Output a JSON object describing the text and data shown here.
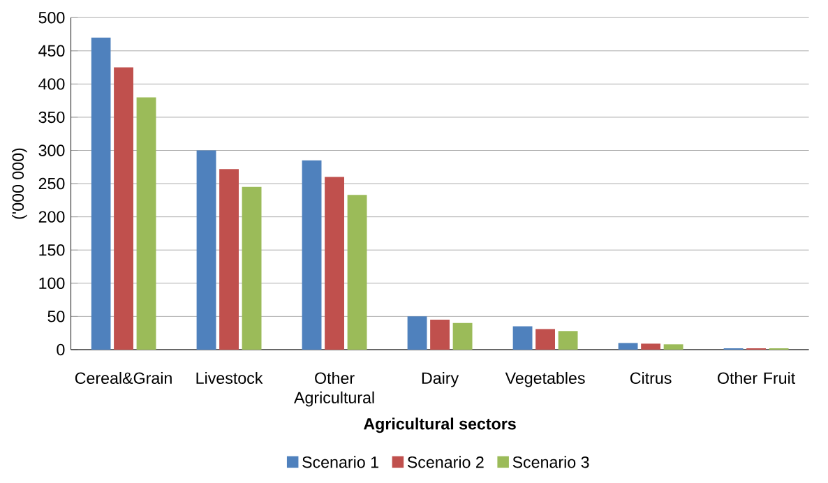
{
  "chart_data": {
    "type": "bar",
    "xlabel": "Agricultural sectors",
    "ylabel": "('000 000)",
    "categories": [
      "Cereal&Grain",
      "Livestock",
      "Other Agricultural",
      "Dairy",
      "Vegetables",
      "Citrus",
      "Other Fruit"
    ],
    "series": [
      {
        "name": "Scenario 1",
        "color": "#4f81bd",
        "values": [
          470,
          300,
          285,
          50,
          35,
          10,
          2
        ]
      },
      {
        "name": "Scenario 2",
        "color": "#c0504d",
        "values": [
          425,
          272,
          260,
          45,
          31,
          9,
          2
        ]
      },
      {
        "name": "Scenario 3",
        "color": "#9bbb59",
        "values": [
          380,
          245,
          233,
          40,
          28,
          8,
          2
        ]
      }
    ],
    "ylim": [
      0,
      500
    ],
    "yticks": [
      0,
      50,
      100,
      150,
      200,
      250,
      300,
      350,
      400,
      450,
      500
    ],
    "grid": "y",
    "legend": "bottom"
  }
}
